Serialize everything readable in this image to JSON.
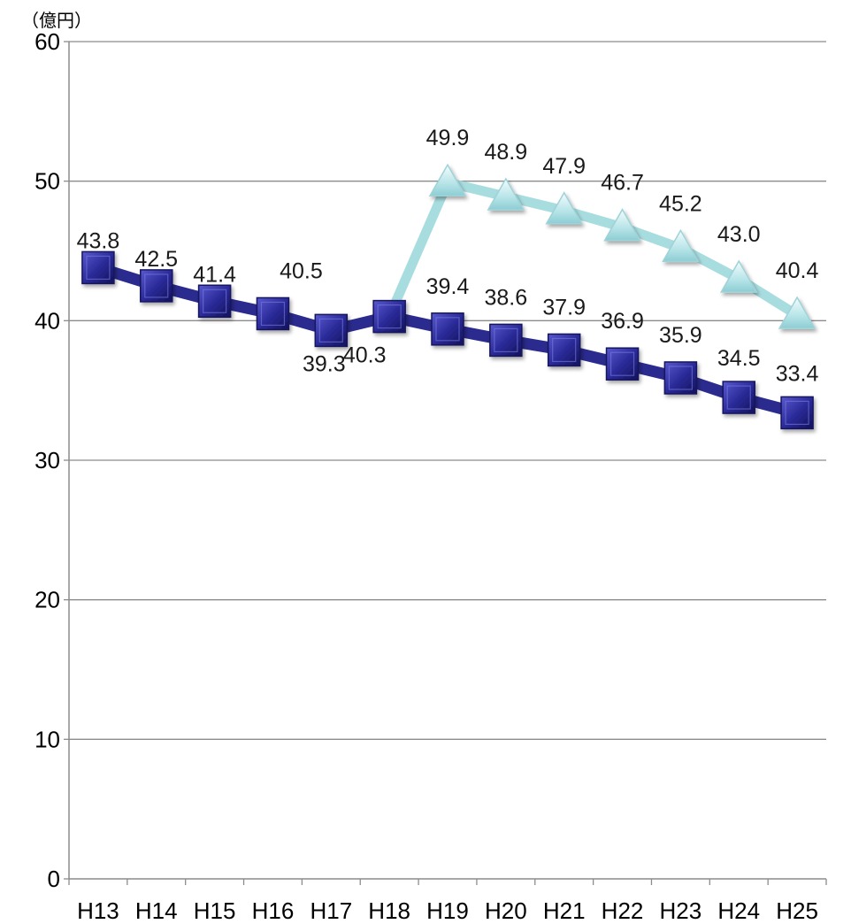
{
  "chart_data": {
    "type": "line",
    "ylabel": "（億円）",
    "ylim": [
      0,
      60
    ],
    "yticks": [
      0,
      10,
      20,
      30,
      40,
      50,
      60
    ],
    "grid": true,
    "categories": [
      "H13",
      "H14",
      "H15",
      "H16",
      "H17",
      "H18",
      "H19",
      "H20",
      "H21",
      "H22",
      "H23",
      "H24",
      "H25"
    ],
    "series": [
      {
        "marker": "square",
        "color": "#2b2b8f",
        "values": [
          43.8,
          42.5,
          41.4,
          40.5,
          39.3,
          40.3,
          39.4,
          38.6,
          37.9,
          36.9,
          35.9,
          34.5,
          33.4
        ],
        "labels": [
          "43.8",
          "42.5",
          "41.4",
          "40.5",
          "39.3",
          "40.3",
          "39.4",
          "38.6",
          "37.9",
          "36.9",
          "35.9",
          "34.5",
          "33.4"
        ]
      },
      {
        "marker": "triangle",
        "color": "#a8dde0",
        "values": [
          null,
          null,
          null,
          null,
          null,
          40.3,
          49.9,
          48.9,
          47.9,
          46.7,
          45.2,
          43.0,
          40.4
        ],
        "labels": [
          "",
          "",
          "",
          "",
          "",
          "",
          "49.9",
          "48.9",
          "47.9",
          "46.7",
          "45.2",
          "43.0",
          "40.4"
        ]
      }
    ]
  }
}
